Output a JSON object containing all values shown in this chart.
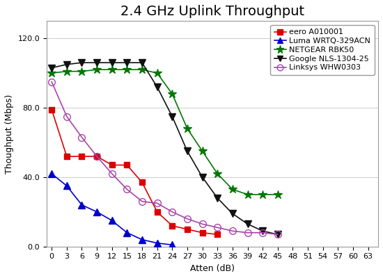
{
  "title": "2.4 GHz Uplink Throughput",
  "xlabel": "Atten (dB)",
  "ylabel": "Thoughput (Mbps)",
  "xlim": [
    -1,
    65
  ],
  "ylim": [
    0,
    130
  ],
  "xticks": [
    0,
    3,
    6,
    9,
    12,
    15,
    18,
    21,
    24,
    27,
    30,
    33,
    36,
    39,
    42,
    45,
    48,
    51,
    54,
    57,
    60,
    63
  ],
  "yticks": [
    0.0,
    40.0,
    80.0,
    120.0
  ],
  "yticklabels": [
    "0.0",
    "40.0",
    "80.0",
    "120.0"
  ],
  "series": {
    "eero A010001": {
      "x": [
        0,
        3,
        6,
        9,
        12,
        15,
        18,
        21,
        24,
        27,
        30,
        33
      ],
      "y": [
        79,
        52,
        52,
        52,
        47,
        47,
        37,
        20,
        12,
        10,
        8,
        7
      ],
      "color": "#dd0000",
      "marker": "s",
      "markersize": 6,
      "linewidth": 1.2,
      "zorder": 3,
      "fillstyle": "full"
    },
    "Luma WRTQ-329ACN": {
      "x": [
        0,
        3,
        6,
        9,
        12,
        15,
        18,
        21,
        24
      ],
      "y": [
        42,
        35,
        24,
        20,
        15,
        8,
        4,
        2,
        1
      ],
      "color": "#0000cc",
      "marker": "^",
      "markersize": 7,
      "linewidth": 1.2,
      "zorder": 3,
      "fillstyle": "full"
    },
    "NETGEAR RBK50": {
      "x": [
        0,
        3,
        6,
        9,
        12,
        15,
        18,
        21,
        24,
        27,
        30,
        33,
        36,
        39,
        42,
        45
      ],
      "y": [
        100,
        101,
        101,
        102,
        102,
        102,
        102,
        100,
        88,
        68,
        55,
        42,
        33,
        30,
        30,
        30
      ],
      "color": "#007700",
      "marker": "*",
      "markersize": 9,
      "linewidth": 1.2,
      "zorder": 3,
      "fillstyle": "full"
    },
    "Google NLS-1304-25": {
      "x": [
        0,
        3,
        6,
        9,
        12,
        15,
        18,
        21,
        24,
        27,
        30,
        33,
        36,
        39,
        42,
        45
      ],
      "y": [
        103,
        105,
        106,
        106,
        106,
        106,
        106,
        92,
        75,
        55,
        40,
        28,
        19,
        13,
        9,
        7
      ],
      "color": "#111111",
      "marker": "v",
      "markersize": 7,
      "linewidth": 1.2,
      "zorder": 3,
      "fillstyle": "full"
    },
    "Linksys WHW0303": {
      "x": [
        0,
        3,
        6,
        9,
        12,
        15,
        18,
        21,
        24,
        27,
        30,
        33,
        36,
        39,
        42,
        45
      ],
      "y": [
        95,
        75,
        63,
        52,
        42,
        33,
        26,
        25,
        20,
        16,
        13,
        11,
        9,
        8,
        8,
        7
      ],
      "color": "#aa44aa",
      "marker": "o",
      "markersize": 7,
      "linewidth": 1.2,
      "zorder": 3,
      "fillstyle": "none"
    }
  },
  "background_color": "#ffffff",
  "grid_color": "#cccccc",
  "title_fontsize": 14,
  "axis_fontsize": 9,
  "tick_fontsize": 8,
  "legend_fontsize": 8,
  "figsize": [
    5.5,
    4.0
  ],
  "dpi": 100
}
